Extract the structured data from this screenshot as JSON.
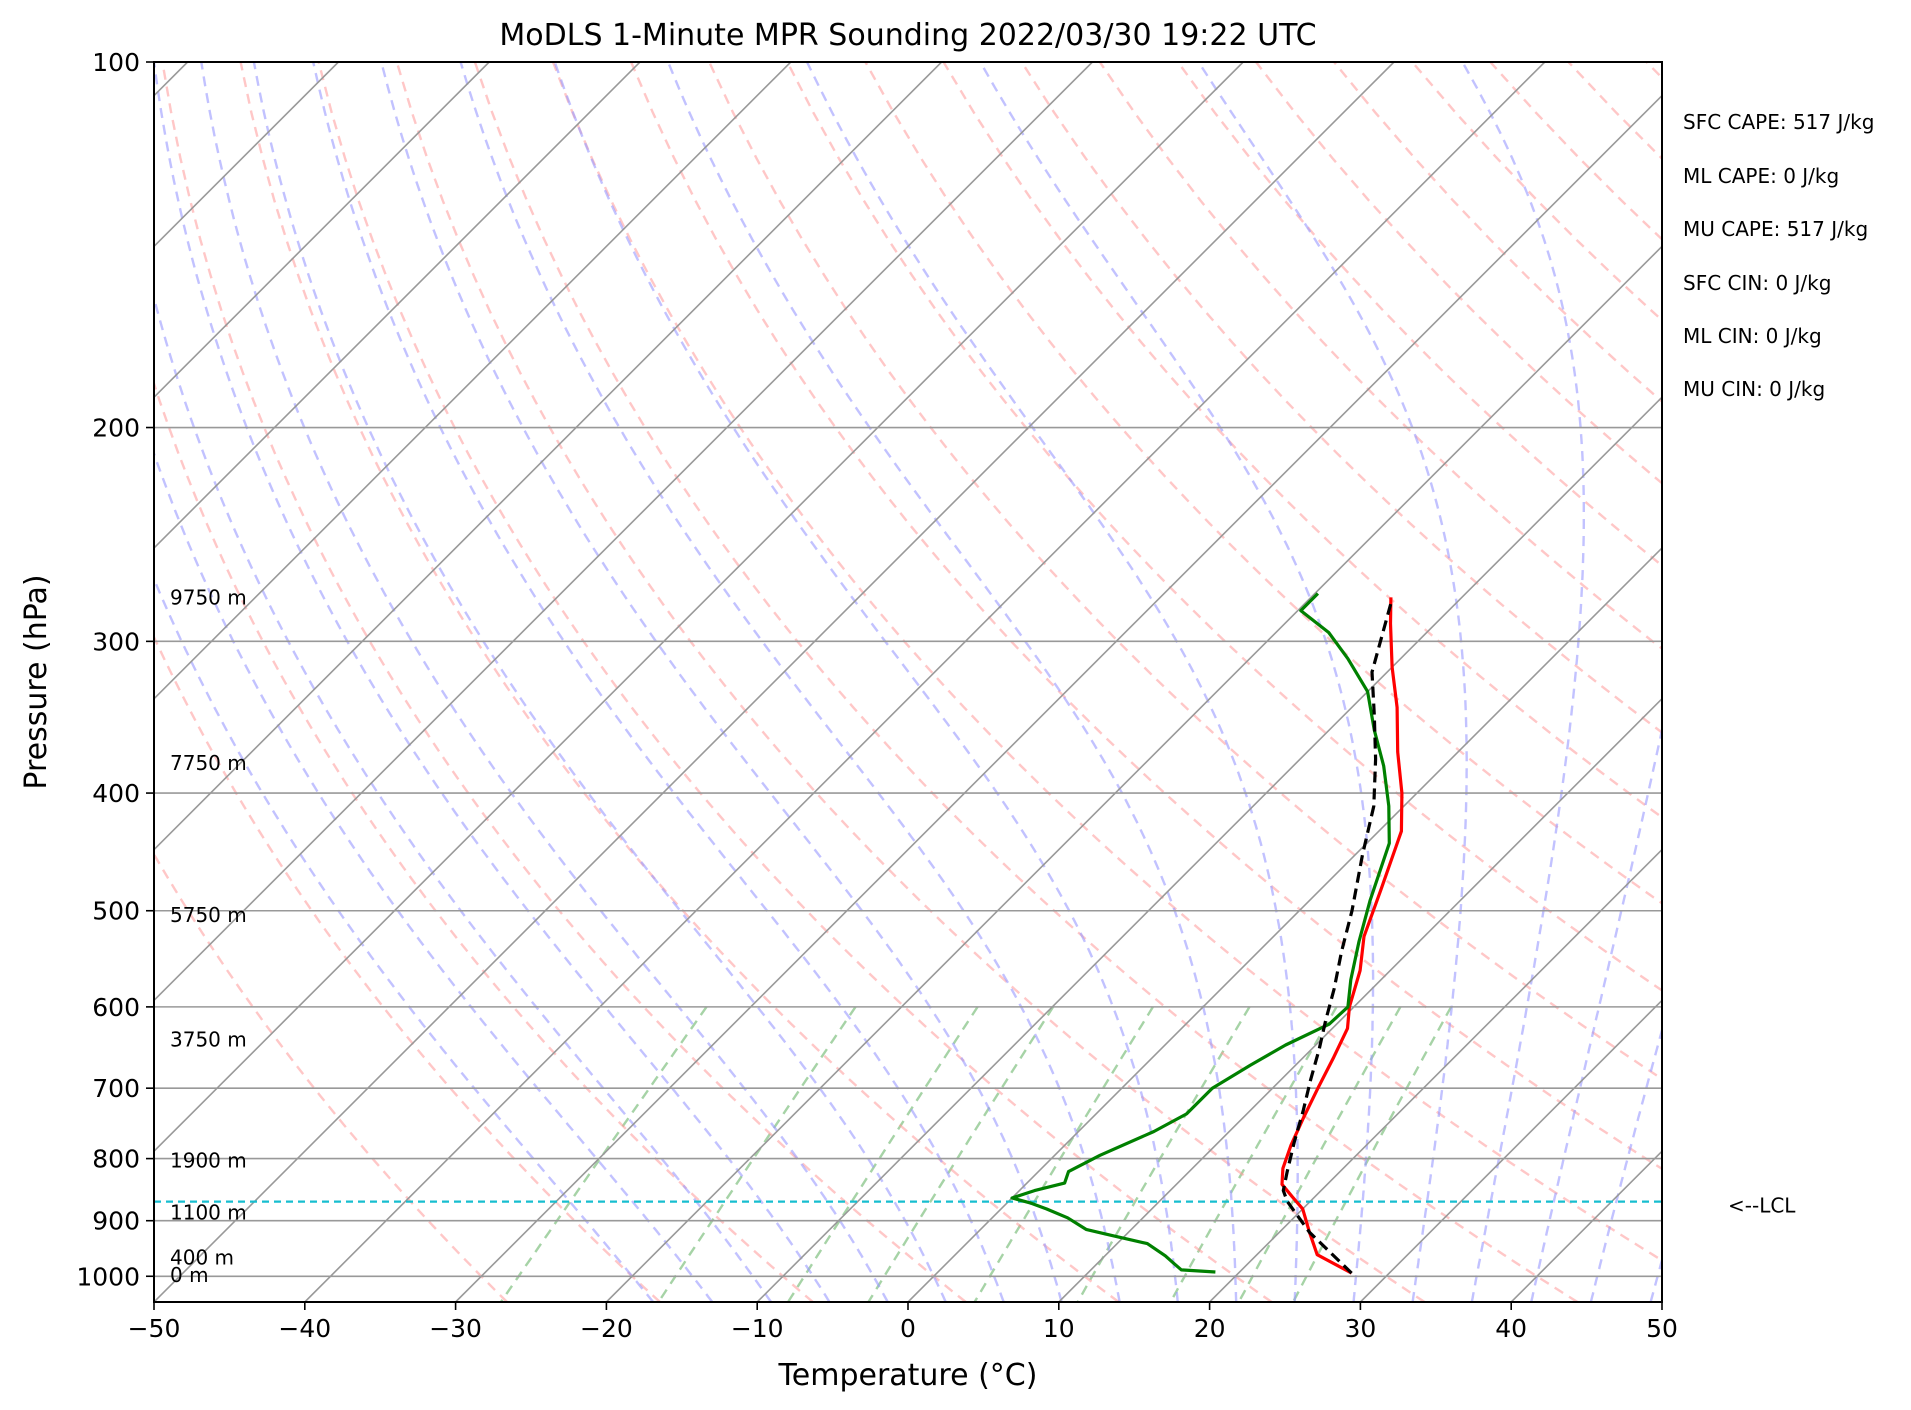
{
  "chart_data": {
    "type": "line",
    "title": "MoDLS 1-Minute MPR Sounding 2022/03/30 19:22 UTC",
    "xlabel": "Temperature (°C)",
    "ylabel": "Pressure (hPa)",
    "xlim": [
      -50,
      50
    ],
    "ylim": [
      1050,
      100
    ],
    "y_scale": "log",
    "x_ticks": [
      -50,
      -40,
      -30,
      -20,
      -10,
      0,
      10,
      20,
      30,
      40,
      50
    ],
    "x_tick_labels": [
      "−50",
      "−40",
      "−30",
      "−20",
      "−10",
      "0",
      "10",
      "20",
      "30",
      "40",
      "50"
    ],
    "y_ticks": [
      100,
      200,
      300,
      400,
      500,
      600,
      700,
      800,
      900,
      1000
    ],
    "y_tick_labels": [
      "100",
      "200",
      "300",
      "400",
      "500",
      "600",
      "700",
      "800",
      "900",
      "1000"
    ],
    "grid": true,
    "skew": 45,
    "lcl_pressure": 868,
    "lcl_label": "<--LCL",
    "height_labels": [
      {
        "p": 276,
        "label": "9750 m"
      },
      {
        "p": 378,
        "label": "7750 m"
      },
      {
        "p": 504,
        "label": "5750 m"
      },
      {
        "p": 638,
        "label": "3750 m"
      },
      {
        "p": 803,
        "label": "1900 m"
      },
      {
        "p": 886,
        "label": "1100 m"
      },
      {
        "p": 965,
        "label": "400 m"
      },
      {
        "p": 998,
        "label": "0 m"
      }
    ],
    "series": [
      {
        "name": "",
        "color": "#ff0000",
        "style": "solid",
        "points": [
          [
            27.5,
            994
          ],
          [
            24.0,
            960
          ],
          [
            22.0,
            920
          ],
          [
            20.0,
            880
          ],
          [
            18.5,
            860
          ],
          [
            17.0,
            840
          ],
          [
            16.0,
            815
          ],
          [
            15.0,
            780
          ],
          [
            14.0,
            740
          ],
          [
            13.0,
            700
          ],
          [
            12.0,
            660
          ],
          [
            11.0,
            625
          ],
          [
            9.7,
            600
          ],
          [
            8.0,
            560
          ],
          [
            6.0,
            525
          ],
          [
            4.0,
            480
          ],
          [
            1.5,
            430
          ],
          [
            -1.0,
            400
          ],
          [
            -4.0,
            370
          ],
          [
            -7.0,
            340
          ],
          [
            -10.0,
            315
          ],
          [
            -13.0,
            290
          ],
          [
            -14.7,
            276
          ]
        ]
      },
      {
        "name": "",
        "color": "#008000",
        "style": "solid",
        "points": [
          [
            18.4,
            992
          ],
          [
            16.0,
            988
          ],
          [
            15.0,
            975
          ],
          [
            14.0,
            962
          ],
          [
            12.0,
            940
          ],
          [
            9.0,
            925
          ],
          [
            7.0,
            915
          ],
          [
            5.0,
            895
          ],
          [
            3.0,
            880
          ],
          [
            1.5,
            870
          ],
          [
            0.0,
            862
          ],
          [
            1.0,
            850
          ],
          [
            2.5,
            838
          ],
          [
            2.0,
            820
          ],
          [
            3.0,
            795
          ],
          [
            5.0,
            760
          ],
          [
            6.0,
            735
          ],
          [
            6.0,
            700
          ],
          [
            7.0,
            670
          ],
          [
            8.0,
            645
          ],
          [
            9.5,
            620
          ],
          [
            9.6,
            600
          ],
          [
            8.0,
            570
          ],
          [
            6.0,
            530
          ],
          [
            4.0,
            490
          ],
          [
            1.5,
            440
          ],
          [
            -1.0,
            410
          ],
          [
            -4.0,
            380
          ],
          [
            -7.0,
            355
          ],
          [
            -10.0,
            330
          ],
          [
            -13.5,
            310
          ],
          [
            -16.5,
            295
          ],
          [
            -19.8,
            283
          ],
          [
            -19.8,
            274
          ]
        ]
      },
      {
        "name": "",
        "color": "#000000",
        "style": "dashed",
        "points": [
          [
            27.5,
            994
          ],
          [
            22.0,
            920
          ],
          [
            18.5,
            868
          ],
          [
            17.5,
            850
          ],
          [
            16.5,
            820
          ],
          [
            15.0,
            775
          ],
          [
            13.5,
            730
          ],
          [
            12.0,
            690
          ],
          [
            10.5,
            650
          ],
          [
            9.0,
            615
          ],
          [
            7.5,
            580
          ],
          [
            5.5,
            540
          ],
          [
            3.5,
            500
          ],
          [
            0.5,
            450
          ],
          [
            -2.0,
            410
          ],
          [
            -5.0,
            375
          ],
          [
            -8.0,
            345
          ],
          [
            -11.0,
            318
          ],
          [
            -14.5,
            277
          ]
        ]
      }
    ]
  },
  "annotations": [
    "SFC CAPE: 517 J/kg",
    "ML CAPE: 0 J/kg",
    "MU CAPE: 517 J/kg",
    "SFC CIN: 0 J/kg",
    "ML CIN: 0 J/kg",
    "MU CIN: 0 J/kg"
  ],
  "colors": {
    "dry_adiabats": "#ff9999",
    "moist_adiabats": "#9999ff",
    "mixing_ratio": "#88c488",
    "isotherms": "#999999",
    "lcl_line": "#17becf"
  }
}
